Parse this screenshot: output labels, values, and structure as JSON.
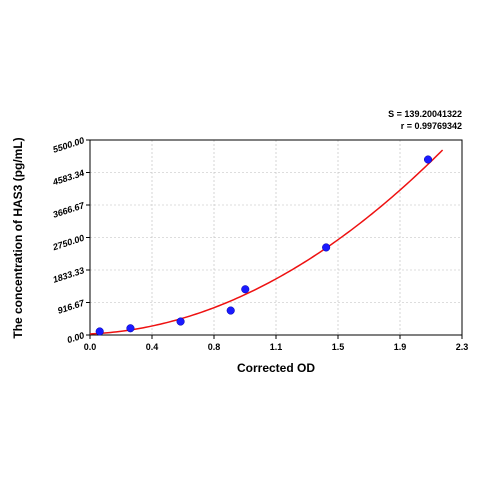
{
  "chart_data": {
    "type": "scatter",
    "xlabel": "Corrected OD",
    "ylabel": "The concentration of HAS3 (pg/mL)",
    "xlim": [
      0,
      2.3
    ],
    "ylim": [
      0,
      5500
    ],
    "x_ticks": [
      "0.0",
      "0.4",
      "0.8",
      "1.1",
      "1.5",
      "1.9",
      "2.3"
    ],
    "y_ticks": [
      "0.00",
      "916.67",
      "1833.33",
      "2750.00",
      "3666.67",
      "4583.34",
      "5500.00"
    ],
    "grid": true,
    "stats": {
      "s": "S = 139.20041322",
      "r": "r = 0.99769342"
    },
    "series": [
      {
        "points": [
          {
            "x": 0.06,
            "y": 100
          },
          {
            "x": 0.25,
            "y": 190
          },
          {
            "x": 0.56,
            "y": 380
          },
          {
            "x": 0.87,
            "y": 690
          },
          {
            "x": 0.96,
            "y": 1290
          },
          {
            "x": 1.46,
            "y": 2470
          },
          {
            "x": 2.09,
            "y": 4950
          }
        ],
        "color": "#1a1aff"
      }
    ],
    "fit_curve": {
      "model": "quadratic",
      "coefficients": [
        30,
        200,
        1000
      ],
      "x_range": [
        0,
        2.18
      ],
      "color": "#ee1111"
    }
  }
}
